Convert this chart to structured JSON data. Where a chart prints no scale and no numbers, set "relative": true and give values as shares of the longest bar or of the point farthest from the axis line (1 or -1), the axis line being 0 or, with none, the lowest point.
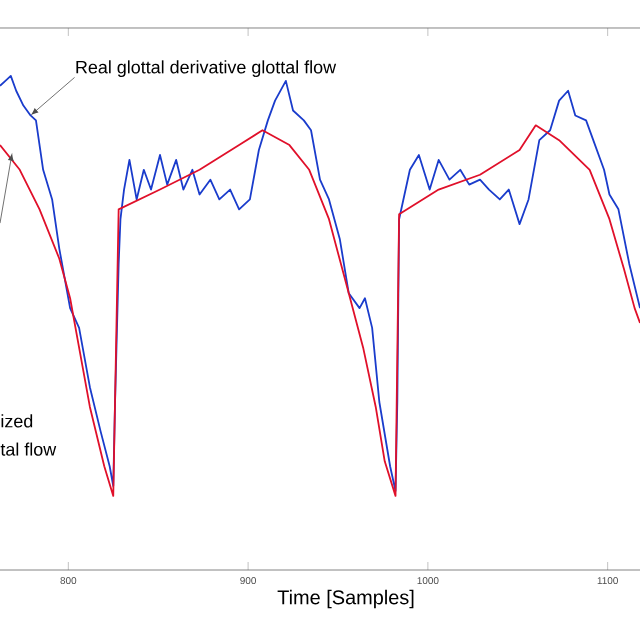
{
  "chart_data": {
    "type": "line",
    "relative": true,
    "xlabel": "Time [Samples]",
    "xlim": [
      762,
      1118
    ],
    "xticks": [
      800,
      900,
      1000,
      1100
    ],
    "series": [
      {
        "color": "#1a3ccc",
        "x": [
          762,
          765,
          768,
          771,
          775,
          779,
          782,
          786,
          791,
          795,
          801,
          806,
          812,
          818,
          823,
          825,
          826,
          828,
          829,
          831,
          834,
          838,
          842,
          846,
          851,
          855,
          860,
          864,
          869,
          873,
          879,
          884,
          890,
          895,
          901,
          906,
          911,
          915,
          921,
          925,
          931,
          935,
          940,
          945,
          951,
          956,
          962,
          965,
          969,
          973,
          979,
          982,
          983,
          984,
          990,
          995,
          1001,
          1006,
          1012,
          1018,
          1023,
          1029,
          1034,
          1040,
          1045,
          1051,
          1056,
          1062,
          1068,
          1073,
          1078,
          1082,
          1088,
          1092,
          1098,
          1101,
          1106,
          1112,
          1118
        ],
        "values": [
          0.98,
          0.99,
          1.0,
          0.97,
          0.94,
          0.92,
          0.91,
          0.81,
          0.75,
          0.65,
          0.53,
          0.49,
          0.37,
          0.28,
          0.21,
          0.17,
          0.34,
          0.62,
          0.71,
          0.77,
          0.83,
          0.75,
          0.81,
          0.77,
          0.84,
          0.78,
          0.83,
          0.77,
          0.81,
          0.76,
          0.79,
          0.75,
          0.77,
          0.73,
          0.75,
          0.85,
          0.91,
          0.95,
          0.99,
          0.93,
          0.91,
          0.89,
          0.79,
          0.75,
          0.67,
          0.56,
          0.53,
          0.55,
          0.49,
          0.34,
          0.21,
          0.16,
          0.34,
          0.71,
          0.81,
          0.84,
          0.77,
          0.83,
          0.79,
          0.81,
          0.78,
          0.79,
          0.77,
          0.75,
          0.77,
          0.7,
          0.75,
          0.87,
          0.89,
          0.95,
          0.97,
          0.92,
          0.91,
          0.87,
          0.81,
          0.76,
          0.73,
          0.62,
          0.53
        ]
      },
      {
        "color": "#e0102a",
        "x": [
          762,
          773,
          784,
          795,
          801,
          806,
          812,
          820,
          825,
          828,
          851,
          873,
          895,
          908,
          923,
          934,
          945,
          956,
          964,
          971,
          976,
          982,
          984,
          1006,
          1029,
          1051,
          1060,
          1073,
          1090,
          1101,
          1109,
          1115,
          1118
        ],
        "values": [
          0.86,
          0.81,
          0.73,
          0.63,
          0.55,
          0.45,
          0.33,
          0.21,
          0.15,
          0.73,
          0.77,
          0.81,
          0.86,
          0.89,
          0.86,
          0.81,
          0.71,
          0.56,
          0.45,
          0.33,
          0.22,
          0.15,
          0.72,
          0.77,
          0.8,
          0.85,
          0.9,
          0.87,
          0.81,
          0.71,
          0.61,
          0.53,
          0.5
        ]
      }
    ],
    "annotations": [
      {
        "text": "Real glottal derivative glottal flow",
        "x": 779,
        "y": 0.92
      },
      "ized",
      "tal flow"
    ]
  }
}
